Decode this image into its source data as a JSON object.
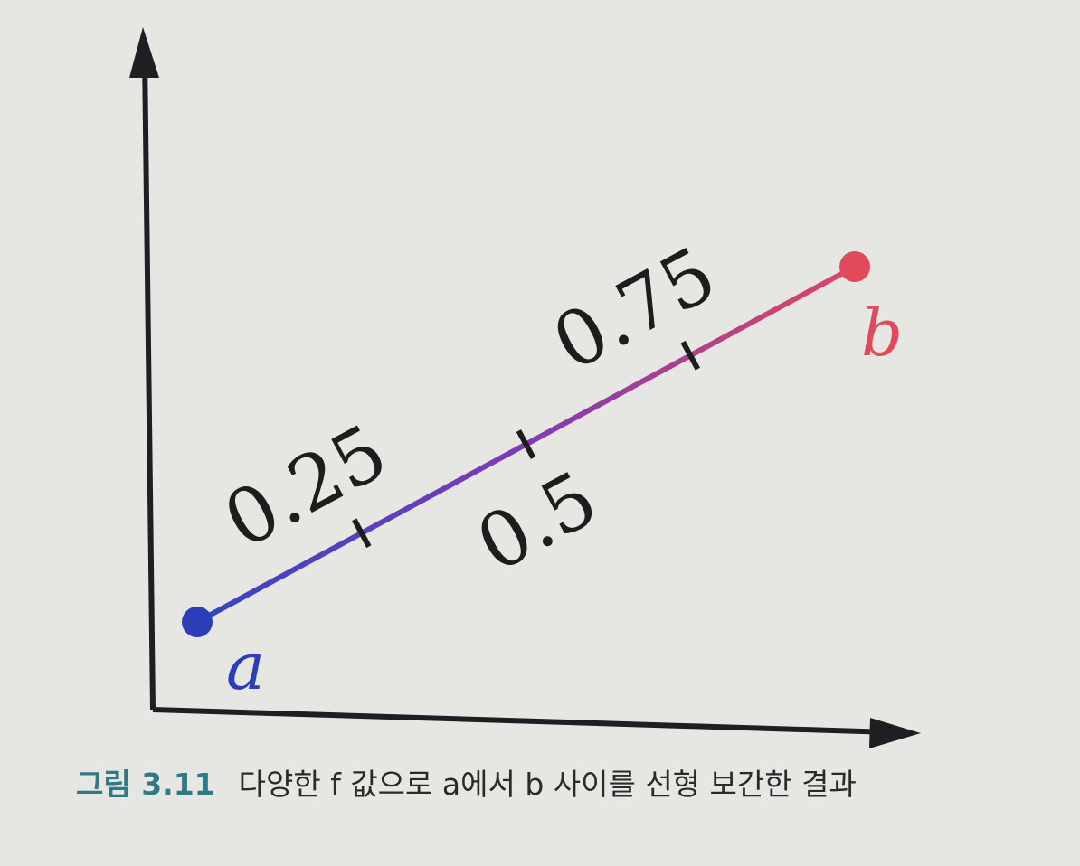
{
  "diagram": {
    "points": {
      "a": {
        "label": "a",
        "color": "#2c3eb7"
      },
      "b": {
        "label": "b",
        "color": "#e04a5a"
      }
    },
    "line_gradient": [
      "#3545c1",
      "#7f3bb5",
      "#de4761"
    ],
    "ticks": [
      {
        "t": 0.25,
        "label": "0.25",
        "label_side": "above"
      },
      {
        "t": 0.5,
        "label": "0.5",
        "label_side": "below"
      },
      {
        "t": 0.75,
        "label": "0.75",
        "label_side": "above"
      }
    ],
    "axis_color": "#1f1f23"
  },
  "caption": {
    "number": "그림 3.11",
    "text": "다양한 f 값으로 a에서 b 사이를 선형 보간한 결과"
  }
}
